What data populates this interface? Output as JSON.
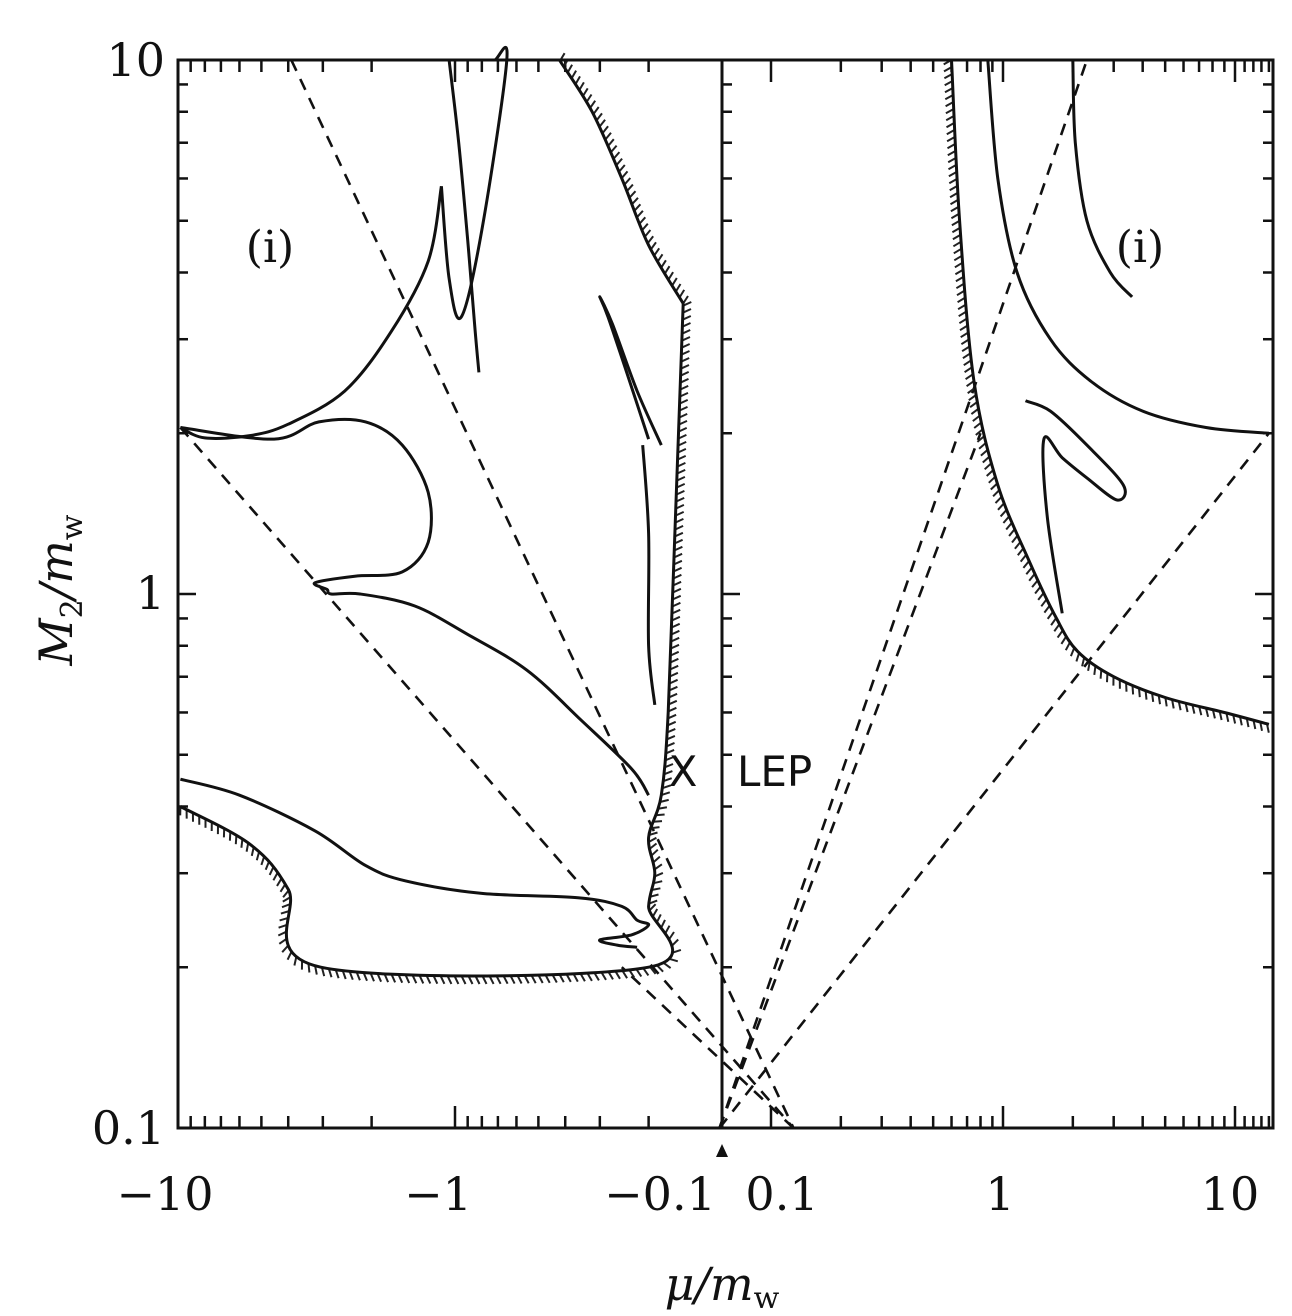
{
  "chart_data": {
    "type": "line",
    "title": "",
    "panels": [
      "mu < 0",
      "mu > 0"
    ],
    "xlabel_main": "μ/m",
    "xlabel_sub": "w",
    "ylabel_main": "M",
    "ylabel_sub1": "2",
    "ylabel_mid": "/m",
    "ylabel_sub2": "w",
    "xscale": "log",
    "yscale": "log",
    "ylim": [
      0.1,
      10
    ],
    "xlim_negative": [
      -10,
      -0.05
    ],
    "xlim_positive": [
      0.05,
      14
    ],
    "x_tick_labels": [
      {
        "value": -10,
        "label": "−10"
      },
      {
        "value": -1,
        "label": "−1"
      },
      {
        "value": -0.1,
        "label": "−0.1"
      },
      {
        "value": 0.1,
        "label": "0.1"
      },
      {
        "value": 1,
        "label": "1"
      },
      {
        "value": 10,
        "label": "10"
      }
    ],
    "y_tick_labels": [
      {
        "value": 10,
        "label": "10"
      },
      {
        "value": 1,
        "label": "1"
      },
      {
        "value": 0.1,
        "label": "0.1"
      }
    ],
    "annotations": {
      "region_left": "(i)",
      "region_right": "(i)",
      "marker_left": "X",
      "marker_right": "LEP"
    },
    "grid": false,
    "legend": "none",
    "colors": {
      "ink": "#111111",
      "background": "#ffffff"
    },
    "series": [
      {
        "style": "dashed",
        "x": [
          -9.8,
          -0.06
        ],
        "y": [
          2.05,
          0.1
        ]
      },
      {
        "style": "dashed",
        "x": [
          -3.9,
          -0.06
        ],
        "y": [
          10,
          0.1
        ]
      },
      {
        "style": "dashed",
        "x": [
          -0.06,
          -0.25
        ],
        "y": [
          0.1,
          0.2
        ]
      },
      {
        "style": "dashed",
        "x": [
          0.06,
          2.3
        ],
        "y": [
          0.1,
          10
        ]
      },
      {
        "style": "dashed",
        "x": [
          0.06,
          14
        ],
        "y": [
          0.1,
          2.0
        ]
      },
      {
        "style": "dashed",
        "x": [
          0.06,
          0.8
        ],
        "y": [
          0.1,
          2.0
        ]
      },
      {
        "style": "solid",
        "x": [
          -9.8,
          -8,
          -5.5,
          -4,
          -2.5,
          -1.7,
          -1.25,
          -1.12
        ],
        "y": [
          2.05,
          1.96,
          1.98,
          2.08,
          2.4,
          3.1,
          4.2,
          5.8
        ]
      },
      {
        "style": "solid",
        "x": [
          -1.12,
          -1.05,
          -0.95,
          -0.8,
          -0.65,
          -0.72,
          -0.8
        ],
        "y": [
          5.8,
          3.9,
          3.3,
          4.8,
          10,
          10,
          10
        ]
      },
      {
        "style": "solid",
        "x": [
          -1.05,
          -0.97,
          -0.9,
          -0.85,
          -0.82
        ],
        "y": [
          10,
          7.0,
          4.6,
          3.2,
          2.6
        ]
      },
      {
        "style": "solid",
        "x": [
          -9.8,
          -4.5,
          -3.1,
          -2.1,
          -1.55,
          -1.25,
          -1.25,
          -1.55,
          -2.3,
          -3.2,
          -2.9,
          -2.8,
          -2.2,
          -1.4,
          -0.9,
          -0.55,
          -0.35,
          -0.23,
          -0.2
        ],
        "y": [
          2.05,
          1.95,
          2.1,
          2.1,
          1.9,
          1.55,
          1.25,
          1.1,
          1.08,
          1.05,
          1.02,
          1.0,
          1.0,
          0.95,
          0.84,
          0.72,
          0.58,
          0.47,
          0.42
        ]
      },
      {
        "style": "solid",
        "x": [
          -0.2,
          -0.24,
          -0.28,
          -0.3,
          -0.27,
          -0.22,
          -0.18
        ],
        "y": [
          1.95,
          2.6,
          3.3,
          3.6,
          3.2,
          2.4,
          1.9
        ]
      },
      {
        "style": "solid",
        "x": [
          -0.21,
          -0.2,
          -0.2,
          -0.19
        ],
        "y": [
          1.9,
          1.3,
          0.8,
          0.62
        ]
      },
      {
        "style": "solid",
        "x": [
          -9.8,
          -6,
          -3.2,
          -2.1,
          -1.5,
          -0.8,
          -0.36,
          -0.25,
          -0.22,
          -0.2,
          -0.23,
          -0.3,
          -0.26,
          -0.22
        ],
        "y": [
          0.45,
          0.42,
          0.36,
          0.31,
          0.29,
          0.275,
          0.27,
          0.26,
          0.245,
          0.24,
          0.23,
          0.225,
          0.22,
          0.218
        ]
      },
      {
        "style": "hatched",
        "x": [
          -9.8,
          -5.5,
          -4,
          -3.05,
          -0.2,
          -0.2,
          -0.19,
          -0.2,
          -0.18,
          -0.17,
          -0.16,
          -0.15
        ],
        "y": [
          0.4,
          0.34,
          0.28,
          0.2,
          0.2,
          0.26,
          0.3,
          0.35,
          0.42,
          0.6,
          1.4,
          3.5
        ]
      },
      {
        "style": "hatched",
        "x": [
          -0.15,
          -0.2,
          -0.25,
          -0.32,
          -0.42
        ],
        "y": [
          3.5,
          4.5,
          6,
          8,
          10
        ]
      },
      {
        "style": "hatched",
        "x": [
          0.6,
          0.65,
          0.75,
          0.95,
          1.3,
          1.7,
          2.1,
          3.0,
          5.0,
          9.0,
          14
        ],
        "y": [
          10,
          5,
          2.5,
          1.6,
          1.15,
          0.9,
          0.78,
          0.7,
          0.64,
          0.6,
          0.57
        ]
      },
      {
        "style": "solid",
        "x": [
          0.86,
          0.95,
          1.15,
          1.6,
          2.4,
          4.0,
          7.5,
          14
        ],
        "y": [
          10,
          6,
          4,
          3,
          2.5,
          2.2,
          2.05,
          2.0
        ]
      },
      {
        "style": "solid",
        "x": [
          2.0,
          2.05,
          2.3,
          2.9,
          3.6
        ],
        "y": [
          10,
          7.0,
          5.0,
          4.0,
          3.6
        ]
      },
      {
        "style": "solid",
        "x": [
          1.25,
          1.6,
          2.3,
          3.3,
          3.1,
          2.3,
          1.8,
          1.5,
          1.55,
          1.8
        ],
        "y": [
          2.3,
          2.2,
          1.9,
          1.6,
          1.5,
          1.65,
          1.8,
          1.95,
          1.4,
          0.92
        ]
      }
    ]
  }
}
